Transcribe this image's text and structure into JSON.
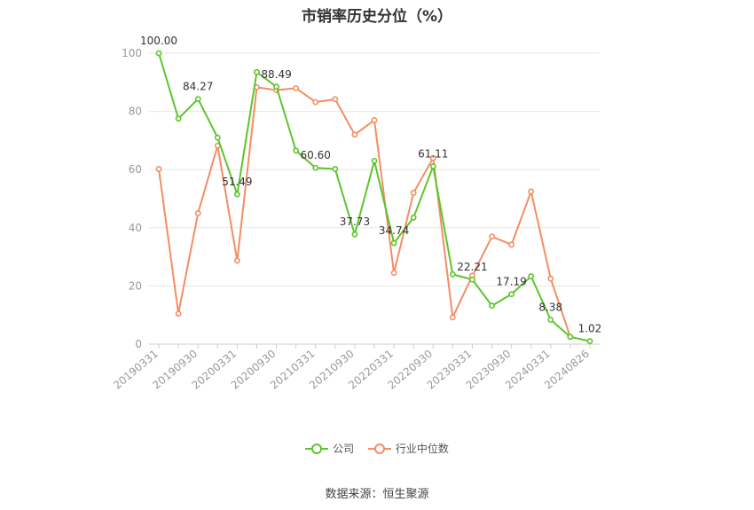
{
  "title": "市销率历史分位（%）",
  "source_text": "数据来源：恒生聚源",
  "colors": {
    "company": "#5cc52c",
    "industry": "#f28e64",
    "grid": "#e6e6e6",
    "axis": "#999999"
  },
  "chart_data": {
    "type": "line",
    "title": "市销率历史分位（%）",
    "ylim": [
      0,
      100
    ],
    "yticks": [
      0,
      20,
      40,
      60,
      80,
      100
    ],
    "grid": true,
    "legend_position": "bottom",
    "x_tick_labels": [
      "20190331",
      "20190930",
      "20200331",
      "20200930",
      "20210331",
      "20210930",
      "20220331",
      "20220930",
      "20230331",
      "20230930",
      "20240331",
      "20240826"
    ],
    "x": [
      "20190331",
      "20190630",
      "20190930",
      "20191231",
      "20200331",
      "20200630",
      "20200930",
      "20201231",
      "20210331",
      "20210630",
      "20210930",
      "20211231",
      "20220331",
      "20220630",
      "20220930",
      "20221231",
      "20230331",
      "20230630",
      "20230930",
      "20231231",
      "20240331",
      "20240630",
      "20240826"
    ],
    "series": [
      {
        "name": "公司",
        "values": [
          100.0,
          77.5,
          84.27,
          71.0,
          51.49,
          93.5,
          88.49,
          66.5,
          60.6,
          60.2,
          37.73,
          63.0,
          34.74,
          43.5,
          61.11,
          24.0,
          22.21,
          13.2,
          17.19,
          23.3,
          8.38,
          2.5,
          1.02
        ]
      },
      {
        "name": "行业中位数",
        "values": [
          60.2,
          10.5,
          45.0,
          68.2,
          28.7,
          88.3,
          87.3,
          88.0,
          83.2,
          84.2,
          72.0,
          77.0,
          24.5,
          52.0,
          64.0,
          9.2,
          23.5,
          37.0,
          34.2,
          52.5,
          22.5,
          2.5,
          null
        ]
      }
    ],
    "data_labels": [
      {
        "series": 0,
        "index": 0,
        "text": "100.00"
      },
      {
        "series": 0,
        "index": 2,
        "text": "84.27"
      },
      {
        "series": 0,
        "index": 4,
        "text": "51.49"
      },
      {
        "series": 0,
        "index": 6,
        "text": "88.49"
      },
      {
        "series": 0,
        "index": 8,
        "text": "60.60"
      },
      {
        "series": 0,
        "index": 10,
        "text": "37.73"
      },
      {
        "series": 0,
        "index": 12,
        "text": "34.74"
      },
      {
        "series": 0,
        "index": 14,
        "text": "61.11"
      },
      {
        "series": 0,
        "index": 16,
        "text": "22.21"
      },
      {
        "series": 0,
        "index": 18,
        "text": "17.19"
      },
      {
        "series": 0,
        "index": 20,
        "text": "8.38"
      },
      {
        "series": 0,
        "index": 22,
        "text": "1.02"
      }
    ]
  }
}
